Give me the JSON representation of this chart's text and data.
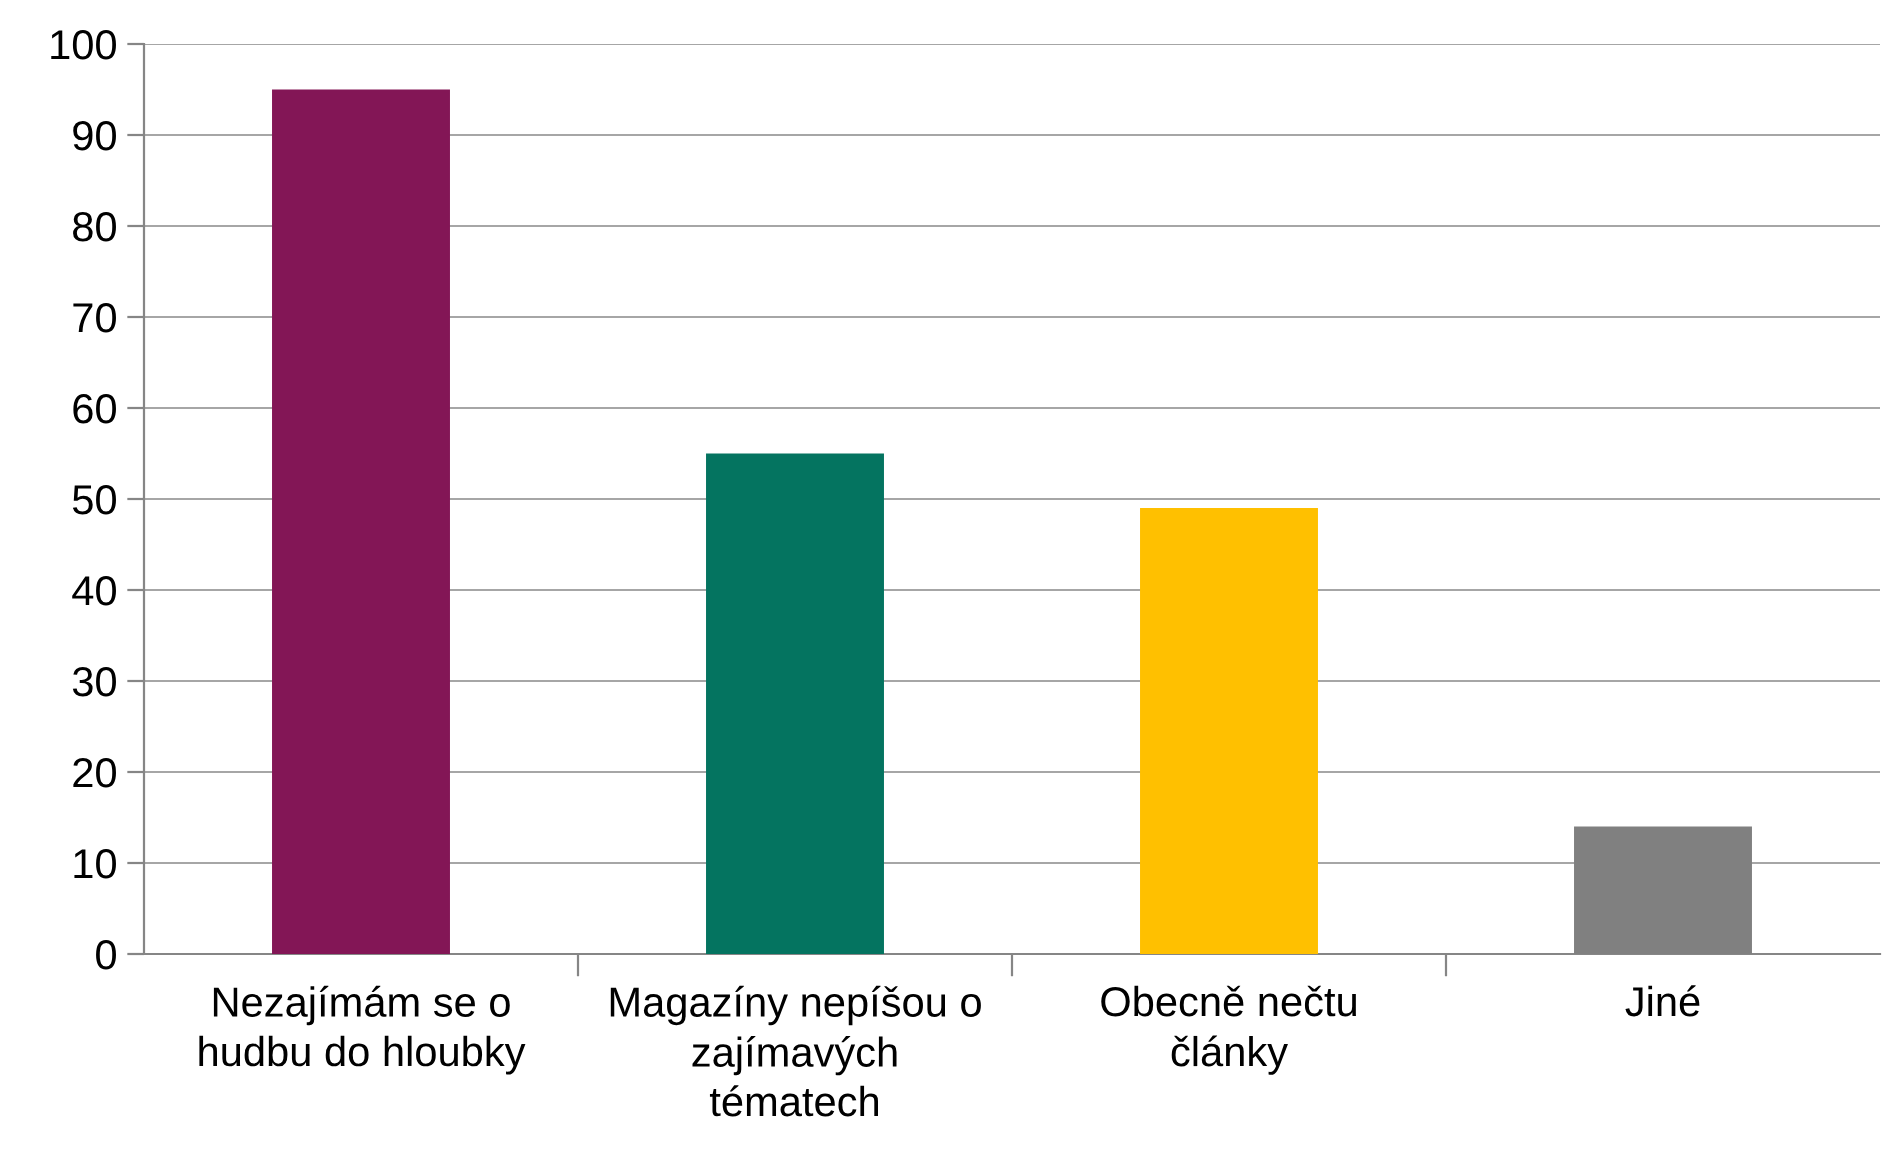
{
  "chart_data": {
    "type": "bar",
    "categories": [
      "Nezajímám se o\nhudbu do hloubky",
      "Magazíny nepíšou o\nzajímavých\ntématech",
      "Obecně nečtu\nčlánky",
      "Jiné"
    ],
    "values": [
      95,
      55,
      49,
      14
    ],
    "colors": [
      "#831656",
      "#047460",
      "#ffc000",
      "#808080"
    ],
    "ylim": [
      0,
      100
    ],
    "yticks": [
      0,
      10,
      20,
      30,
      40,
      50,
      60,
      70,
      80,
      90,
      100
    ],
    "grid": "y",
    "legend": false
  }
}
